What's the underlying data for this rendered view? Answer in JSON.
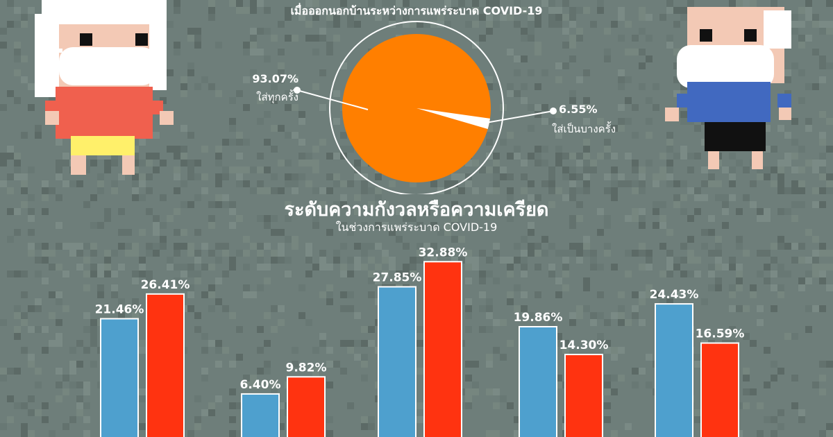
{
  "pie": {
    "subtitle": "เมื่อออกนอกบ้านระหว่างการแพร่ระบาด COVID-19",
    "slices": [
      {
        "pct_label": "93.07%",
        "label": "ใส่ทุกครั้ง",
        "value": 93.07
      },
      {
        "pct_label": "6.55%",
        "label": "ใส่เป็นบางครั้ง",
        "value": 6.55
      }
    ]
  },
  "stress": {
    "title": "ระดับความกังวลหรือความเครียด",
    "subtitle": "ในช่วงการแพร่ระบาด COVID-19"
  },
  "colors": {
    "background": "#6e7e7a",
    "pie_fill": "#ff7f00",
    "bar_blue": "#4ea0ce",
    "bar_red": "#ff3310"
  },
  "chart_data": [
    {
      "type": "pie",
      "title": "",
      "values": [
        93.07,
        6.55
      ],
      "labels": [
        "ใส่ทุกครั้ง",
        "ใส่เป็นบางครั้ง"
      ]
    },
    {
      "type": "bar",
      "title": "ระดับความกังวลหรือความเครียด",
      "subtitle": "ในช่วงการแพร่ระบาด COVID-19",
      "categories": [
        "",
        "",
        "",
        "",
        ""
      ],
      "series": [
        {
          "values": [
            21.46,
            6.4,
            27.85,
            19.86,
            24.43
          ],
          "labels": [
            "21.46%",
            "6.40%",
            "27.85%",
            "19.86%",
            "24.43%"
          ]
        },
        {
          "values": [
            26.41,
            9.82,
            32.88,
            14.3,
            16.59
          ],
          "labels": [
            "26.41%",
            "9.82%",
            "32.88%",
            "14.30%",
            "16.59%"
          ]
        }
      ],
      "ylim": [
        0,
        40
      ]
    }
  ]
}
